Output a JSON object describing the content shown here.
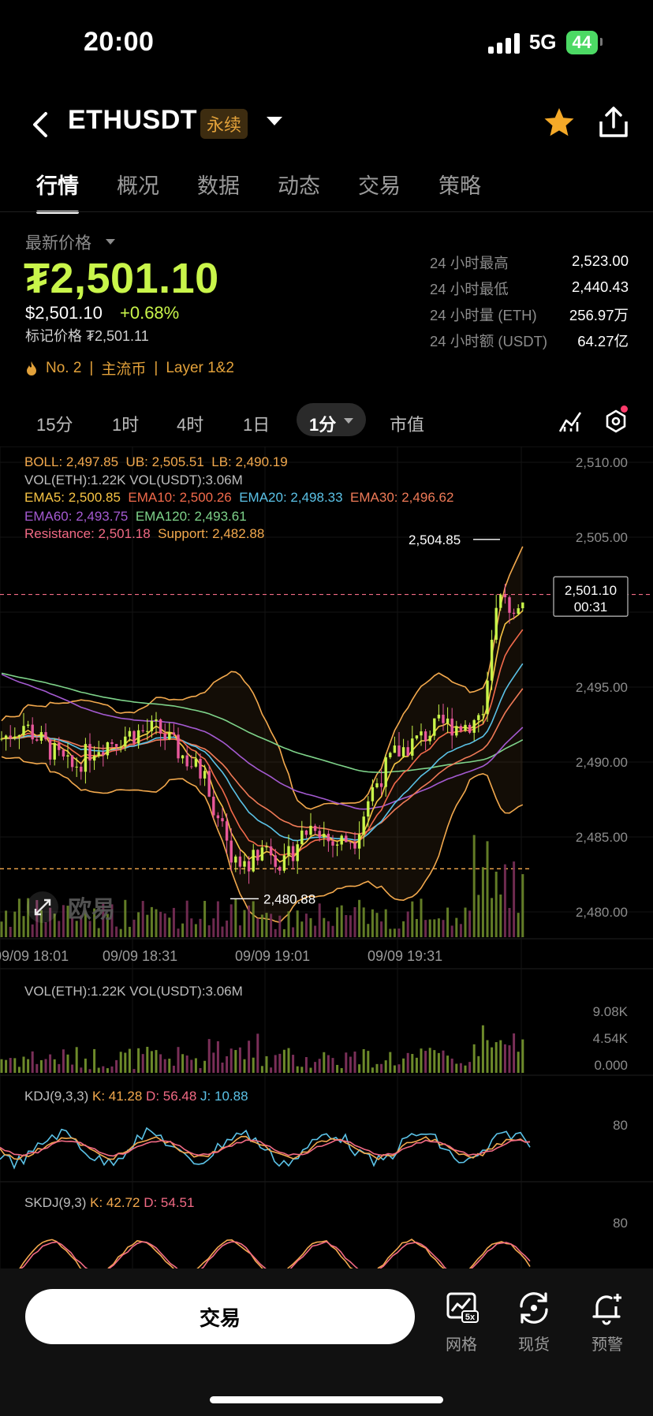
{
  "status": {
    "time": "20:00",
    "network": "5G",
    "battery": "44"
  },
  "header": {
    "pair": "ETHUSDT",
    "contract_type": "永续",
    "icons": [
      "back-arrow-icon",
      "chevron-down-icon",
      "star-icon",
      "share-icon"
    ]
  },
  "tabs": [
    {
      "label": "行情",
      "active": true
    },
    {
      "label": "概况",
      "active": false
    },
    {
      "label": "数据",
      "active": false
    },
    {
      "label": "动态",
      "active": false
    },
    {
      "label": "交易",
      "active": false
    },
    {
      "label": "策略",
      "active": false
    }
  ],
  "price": {
    "latest_label": "最新价格",
    "big": "₮2,501.10",
    "usd": "$2,501.10",
    "change": "+0.68%",
    "mark": "标记价格 ₮2,501.11",
    "tags": [
      "No. 2",
      "主流币",
      "Layer 1&2"
    ]
  },
  "stats": [
    {
      "k": "24 小时最高",
      "v": "2,523.00"
    },
    {
      "k": "24 小时最低",
      "v": "2,440.43"
    },
    {
      "k": "24 小时量 (ETH)",
      "v": "256.97万"
    },
    {
      "k": "24 小时额 (USDT)",
      "v": "64.27亿"
    }
  ],
  "timeframes": {
    "items": [
      "15分",
      "1时",
      "4时",
      "1日"
    ],
    "active": "1分",
    "extra": "市值"
  },
  "legend": {
    "boll": "BOLL: 2,497.85",
    "ub": "UB: 2,505.51",
    "lb": "LB: 2,490.19",
    "vol": "VOL(ETH):1.22K  VOL(USDT):3.06M",
    "ema5": "EMA5: 2,500.85",
    "ema10": "EMA10: 2,500.26",
    "ema20": "EMA20: 2,498.33",
    "ema30": "EMA30: 2,496.62",
    "ema60": "EMA60: 2,493.75",
    "ema120": "EMA120: 2,493.61",
    "resistance": "Resistance: 2,501.18",
    "support": "Support: 2,482.88"
  },
  "chart_data": {
    "type": "candlestick",
    "y_ticks": [
      "2,510.00",
      "2,505.00",
      "2,500.00",
      "2,495.00",
      "2,490.00",
      "2,485.00",
      "2,480.00"
    ],
    "ylim": [
      2479.5,
      2511
    ],
    "x_ticks": [
      "09/09 18:01",
      "09/09 18:31",
      "09/09 19:01",
      "09/09 19:31"
    ],
    "high_annotation": "2,504.85",
    "low_annotation": "2,480.88",
    "current_price": "2,501.10",
    "countdown": "00:31",
    "resistance": 2501.18,
    "support": 2482.88,
    "colors": {
      "up": "#c9f54a",
      "down": "#e8589b",
      "ema5": "#f6c344",
      "ema10": "#f26a4b",
      "ema20": "#5bc2e7",
      "ema30": "#ef7a57",
      "ema60": "#a45ad1",
      "ema120": "#7ed38a",
      "boll": "#f3a94d"
    },
    "volume_panel": {
      "label": "VOL(ETH):1.22K  VOL(USDT):3.06M",
      "ticks": [
        "9.08K",
        "4.54K",
        "0.000"
      ]
    },
    "kdj_panel": {
      "label": "KDJ(9,3,3)",
      "k": "K: 41.28",
      "d": "D: 56.48",
      "j": "J: 10.88",
      "tick": "80"
    },
    "skdj_panel": {
      "label": "SKDJ(9,3)",
      "k": "K: 42.72",
      "d": "D: 54.51",
      "tick": "80"
    },
    "watermark": "欧易"
  },
  "bottom": {
    "trade": "交易",
    "grid": "网格",
    "spot": "现货",
    "alert": "预警",
    "grid_badge": "5x"
  }
}
